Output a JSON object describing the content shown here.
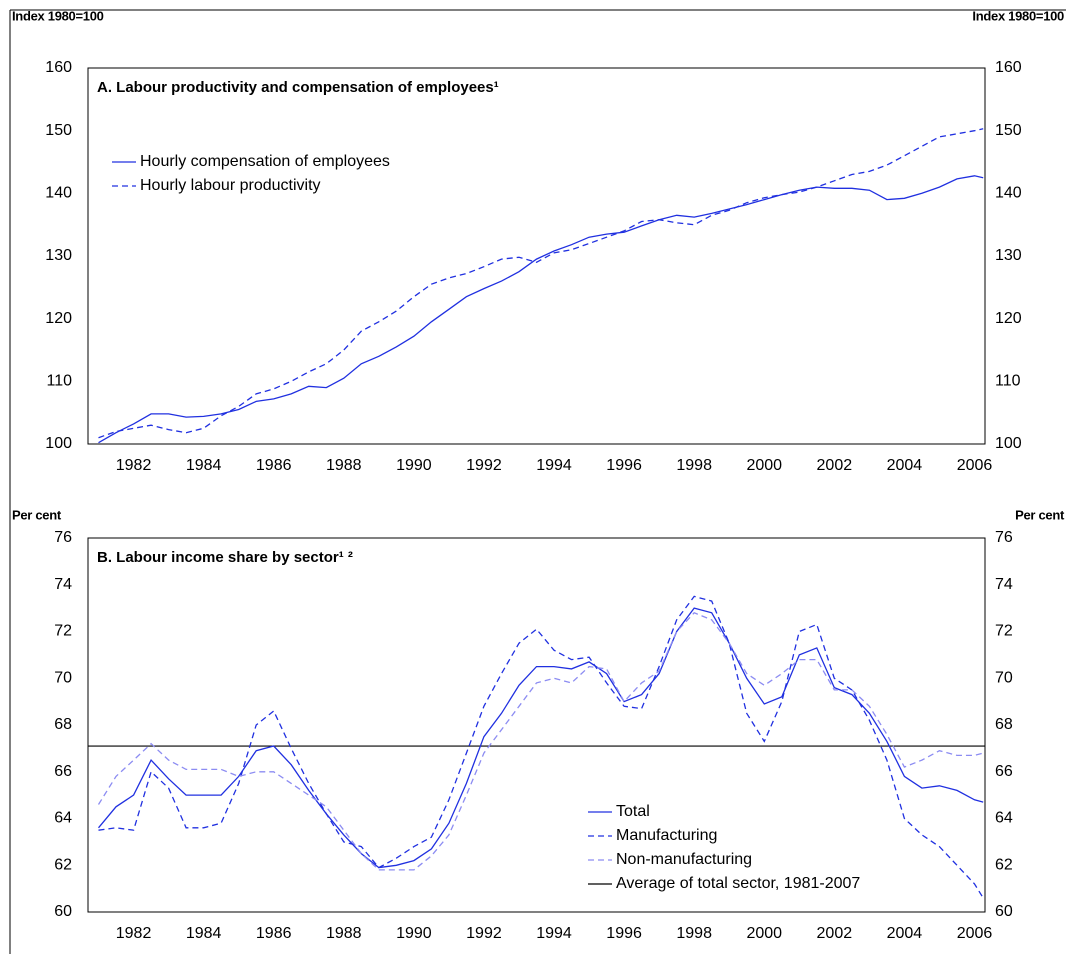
{
  "chart_data": [
    {
      "type": "line",
      "title": "A. Labour productivity and compensation of employees¹",
      "ylabel": "Index 1980=100",
      "y2label": "Index 1980=100",
      "legend": "upper left",
      "xlim": [
        1981.2,
        2006.8
      ],
      "xticks": [
        {
          "value": 1982.5,
          "label": "1982"
        },
        {
          "value": 1984.5,
          "label": "1984"
        },
        {
          "value": 1986.5,
          "label": "1986"
        },
        {
          "value": 1988.5,
          "label": "1988"
        },
        {
          "value": 1990.5,
          "label": "1990"
        },
        {
          "value": 1992.5,
          "label": "1992"
        },
        {
          "value": 1994.5,
          "label": "1994"
        },
        {
          "value": 1996.5,
          "label": "1996"
        },
        {
          "value": 1998.5,
          "label": "1998"
        },
        {
          "value": 2000.5,
          "label": "2000"
        },
        {
          "value": 2002.5,
          "label": "2002"
        },
        {
          "value": 2004.5,
          "label": "2004"
        },
        {
          "value": 2006.5,
          "label": "2006"
        }
      ],
      "ylim": [
        100,
        160
      ],
      "yticks": [
        100,
        110,
        120,
        130,
        140,
        150,
        160
      ],
      "y2lim": [
        100,
        160
      ],
      "y2ticks": [
        100,
        110,
        120,
        130,
        140,
        150,
        160
      ],
      "x": [
        1981.5,
        1982,
        1982.5,
        1983,
        1983.5,
        1984,
        1984.5,
        1985,
        1985.5,
        1986,
        1986.5,
        1987,
        1987.5,
        1988,
        1988.5,
        1989,
        1989.5,
        1990,
        1990.5,
        1991,
        1991.5,
        1992,
        1992.5,
        1993,
        1993.5,
        1994,
        1994.5,
        1995,
        1995.5,
        1996,
        1996.5,
        1997,
        1997.5,
        1998,
        1998.5,
        1999,
        1999.5,
        2000,
        2000.5,
        2001,
        2001.5,
        2002,
        2002.5,
        2003,
        2003.5,
        2004,
        2004.5,
        2005,
        2005.5,
        2006,
        2006.5,
        2006.75
      ],
      "series": [
        {
          "name": "Hourly compensation of employees",
          "color": "#2030e0",
          "dash": "solid",
          "values": [
            100.2,
            101.8,
            103.2,
            104.8,
            104.8,
            104.3,
            104.4,
            104.8,
            105.5,
            106.8,
            107.2,
            108.0,
            109.2,
            109.0,
            110.5,
            112.8,
            114.0,
            115.5,
            117.2,
            119.5,
            121.5,
            123.5,
            124.8,
            126.0,
            127.5,
            129.5,
            130.8,
            131.8,
            133.0,
            133.5,
            133.8,
            134.8,
            135.8,
            136.5,
            136.2,
            136.8,
            137.5,
            138.2,
            139.0,
            139.8,
            140.5,
            141.0,
            140.8,
            140.8,
            140.5,
            139.0,
            139.2,
            140.0,
            141.0,
            142.3,
            142.8,
            142.5
          ]
        },
        {
          "name": "Hourly labour productivity",
          "color": "#2030e0",
          "dash": "dashed",
          "values": [
            101.0,
            102.0,
            102.5,
            103.0,
            102.3,
            101.8,
            102.5,
            104.5,
            106.0,
            108.0,
            108.8,
            110.0,
            111.5,
            112.8,
            115.0,
            118.0,
            119.5,
            121.2,
            123.5,
            125.5,
            126.5,
            127.2,
            128.3,
            129.5,
            129.8,
            129.0,
            130.5,
            131.0,
            132.0,
            133.0,
            134.0,
            135.5,
            135.8,
            135.3,
            135.0,
            136.5,
            137.3,
            138.5,
            139.3,
            139.8,
            140.2,
            141.0,
            142.0,
            143.0,
            143.5,
            144.5,
            146.0,
            147.5,
            149.0,
            149.5,
            150.0,
            150.3
          ]
        }
      ]
    },
    {
      "type": "line",
      "title": "B. Labour income share by sector¹ ²",
      "ylabel": "Per cent",
      "y2label": "Per cent",
      "legend": "lower right",
      "xlim": [
        1981.2,
        2006.8
      ],
      "xticks": [
        {
          "value": 1982.5,
          "label": "1982"
        },
        {
          "value": 1984.5,
          "label": "1984"
        },
        {
          "value": 1986.5,
          "label": "1986"
        },
        {
          "value": 1988.5,
          "label": "1988"
        },
        {
          "value": 1990.5,
          "label": "1990"
        },
        {
          "value": 1992.5,
          "label": "1992"
        },
        {
          "value": 1994.5,
          "label": "1994"
        },
        {
          "value": 1996.5,
          "label": "1996"
        },
        {
          "value": 1998.5,
          "label": "1998"
        },
        {
          "value": 2000.5,
          "label": "2000"
        },
        {
          "value": 2002.5,
          "label": "2002"
        },
        {
          "value": 2004.5,
          "label": "2004"
        },
        {
          "value": 2006.5,
          "label": "2006"
        }
      ],
      "ylim": [
        60,
        76
      ],
      "yticks": [
        60,
        62,
        64,
        66,
        68,
        70,
        72,
        74,
        76
      ],
      "y2lim": [
        60,
        76
      ],
      "y2ticks": [
        60,
        62,
        64,
        66,
        68,
        70,
        72,
        74,
        76
      ],
      "x": [
        1981.5,
        1982,
        1982.5,
        1983,
        1983.5,
        1984,
        1984.5,
        1985,
        1985.5,
        1986,
        1986.5,
        1987,
        1987.5,
        1988,
        1988.5,
        1989,
        1989.5,
        1990,
        1990.5,
        1991,
        1991.5,
        1992,
        1992.5,
        1993,
        1993.5,
        1994,
        1994.5,
        1995,
        1995.5,
        1996,
        1996.5,
        1997,
        1997.5,
        1998,
        1998.5,
        1999,
        1999.5,
        2000,
        2000.5,
        2001,
        2001.5,
        2002,
        2002.5,
        2003,
        2003.5,
        2004,
        2004.5,
        2005,
        2005.5,
        2006,
        2006.5,
        2006.75
      ],
      "series": [
        {
          "name": "Total",
          "color": "#2030e0",
          "dash": "solid",
          "values": [
            63.6,
            64.5,
            65.0,
            66.5,
            65.7,
            65.0,
            65.0,
            65.0,
            65.8,
            66.9,
            67.1,
            66.3,
            65.2,
            64.2,
            63.3,
            62.5,
            61.9,
            62.0,
            62.2,
            62.7,
            63.8,
            65.5,
            67.5,
            68.5,
            69.7,
            70.5,
            70.5,
            70.4,
            70.7,
            70.2,
            69.0,
            69.3,
            70.2,
            72.0,
            73.0,
            72.8,
            71.5,
            70.0,
            68.9,
            69.2,
            71.0,
            71.3,
            69.6,
            69.3,
            68.5,
            67.3,
            65.8,
            65.3,
            65.4,
            65.2,
            64.8,
            64.7
          ]
        },
        {
          "name": "Manufacturing",
          "color": "#2030e0",
          "dash": "dashed",
          "values": [
            63.5,
            63.6,
            63.5,
            66.0,
            65.3,
            63.6,
            63.6,
            63.8,
            65.5,
            68.0,
            68.6,
            67.0,
            65.5,
            64.2,
            63.0,
            62.8,
            61.9,
            62.3,
            62.8,
            63.2,
            64.8,
            66.8,
            68.8,
            70.2,
            71.5,
            72.1,
            71.2,
            70.8,
            70.9,
            69.8,
            68.8,
            68.7,
            70.5,
            72.5,
            73.5,
            73.3,
            71.5,
            68.5,
            67.3,
            69.0,
            72.0,
            72.3,
            70.0,
            69.5,
            68.2,
            66.5,
            64.0,
            63.3,
            62.8,
            62.0,
            61.2,
            60.6
          ]
        },
        {
          "name": "Non-manufacturing",
          "color": "#8c8cf2",
          "dash": "dashed",
          "values": [
            64.6,
            65.8,
            66.5,
            67.2,
            66.5,
            66.1,
            66.1,
            66.1,
            65.8,
            66.0,
            66.0,
            65.5,
            65.0,
            64.5,
            63.5,
            62.5,
            61.8,
            61.8,
            61.8,
            62.4,
            63.3,
            65.0,
            66.8,
            67.8,
            68.8,
            69.8,
            70.0,
            69.8,
            70.5,
            70.4,
            69.0,
            69.8,
            70.3,
            72.0,
            72.8,
            72.5,
            71.5,
            70.2,
            69.7,
            70.2,
            70.8,
            70.8,
            69.5,
            69.5,
            68.8,
            67.6,
            66.2,
            66.5,
            66.9,
            66.7,
            66.7,
            66.8
          ]
        }
      ],
      "reference_line": {
        "name": "Average of total sector, 1981-2007",
        "value": 67.1,
        "color": "#000000"
      }
    }
  ]
}
